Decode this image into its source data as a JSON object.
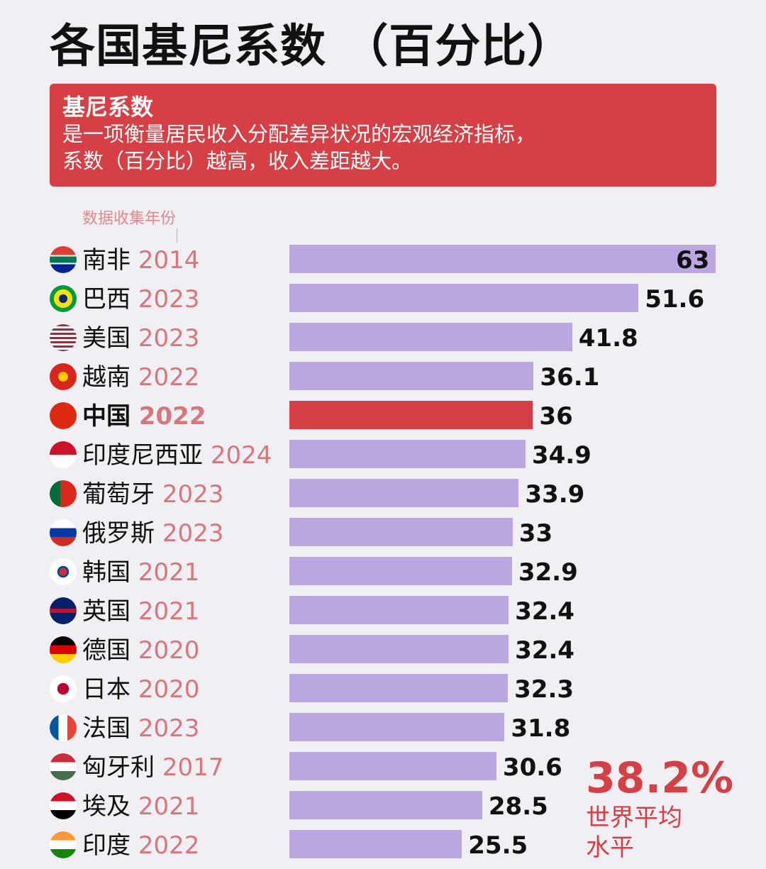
{
  "title": "各国基尼系数 （百分比）",
  "info": {
    "heading": "基尼系数",
    "line1": "是一项衡量居民收入分配差异状况的宏观经济指标，",
    "line2": "系数（百分比）越高，收入差距越大。"
  },
  "note": "数据收集年份",
  "colors": {
    "bar": "#bba7e0",
    "highlight": "#d64045",
    "year": "#d9767b"
  },
  "average": {
    "value": "38.2%",
    "label1": "世界平均",
    "label2": "水平"
  },
  "chart_data": {
    "type": "bar",
    "orientation": "horizontal",
    "xlim": [
      0,
      63
    ],
    "categories": [
      "南非",
      "巴西",
      "美国",
      "越南",
      "中国",
      "印度尼西亚",
      "葡萄牙",
      "俄罗斯",
      "韩国",
      "英国",
      "德国",
      "日本",
      "法国",
      "匈牙利",
      "埃及",
      "印度"
    ],
    "years": [
      "2014",
      "2023",
      "2023",
      "2022",
      "2022",
      "2024",
      "2023",
      "2023",
      "2021",
      "2021",
      "2020",
      "2020",
      "2023",
      "2017",
      "2021",
      "2022"
    ],
    "flags": [
      "za",
      "br",
      "us",
      "vn",
      "cn",
      "id",
      "pt",
      "ru",
      "kr",
      "gb",
      "de",
      "jp",
      "fr",
      "hu",
      "eg",
      "in"
    ],
    "values": [
      63,
      51.6,
      41.8,
      36.1,
      36,
      34.9,
      33.9,
      33,
      32.9,
      32.4,
      32.4,
      32.3,
      31.8,
      30.6,
      28.5,
      25.5
    ],
    "highlight": "中国"
  }
}
